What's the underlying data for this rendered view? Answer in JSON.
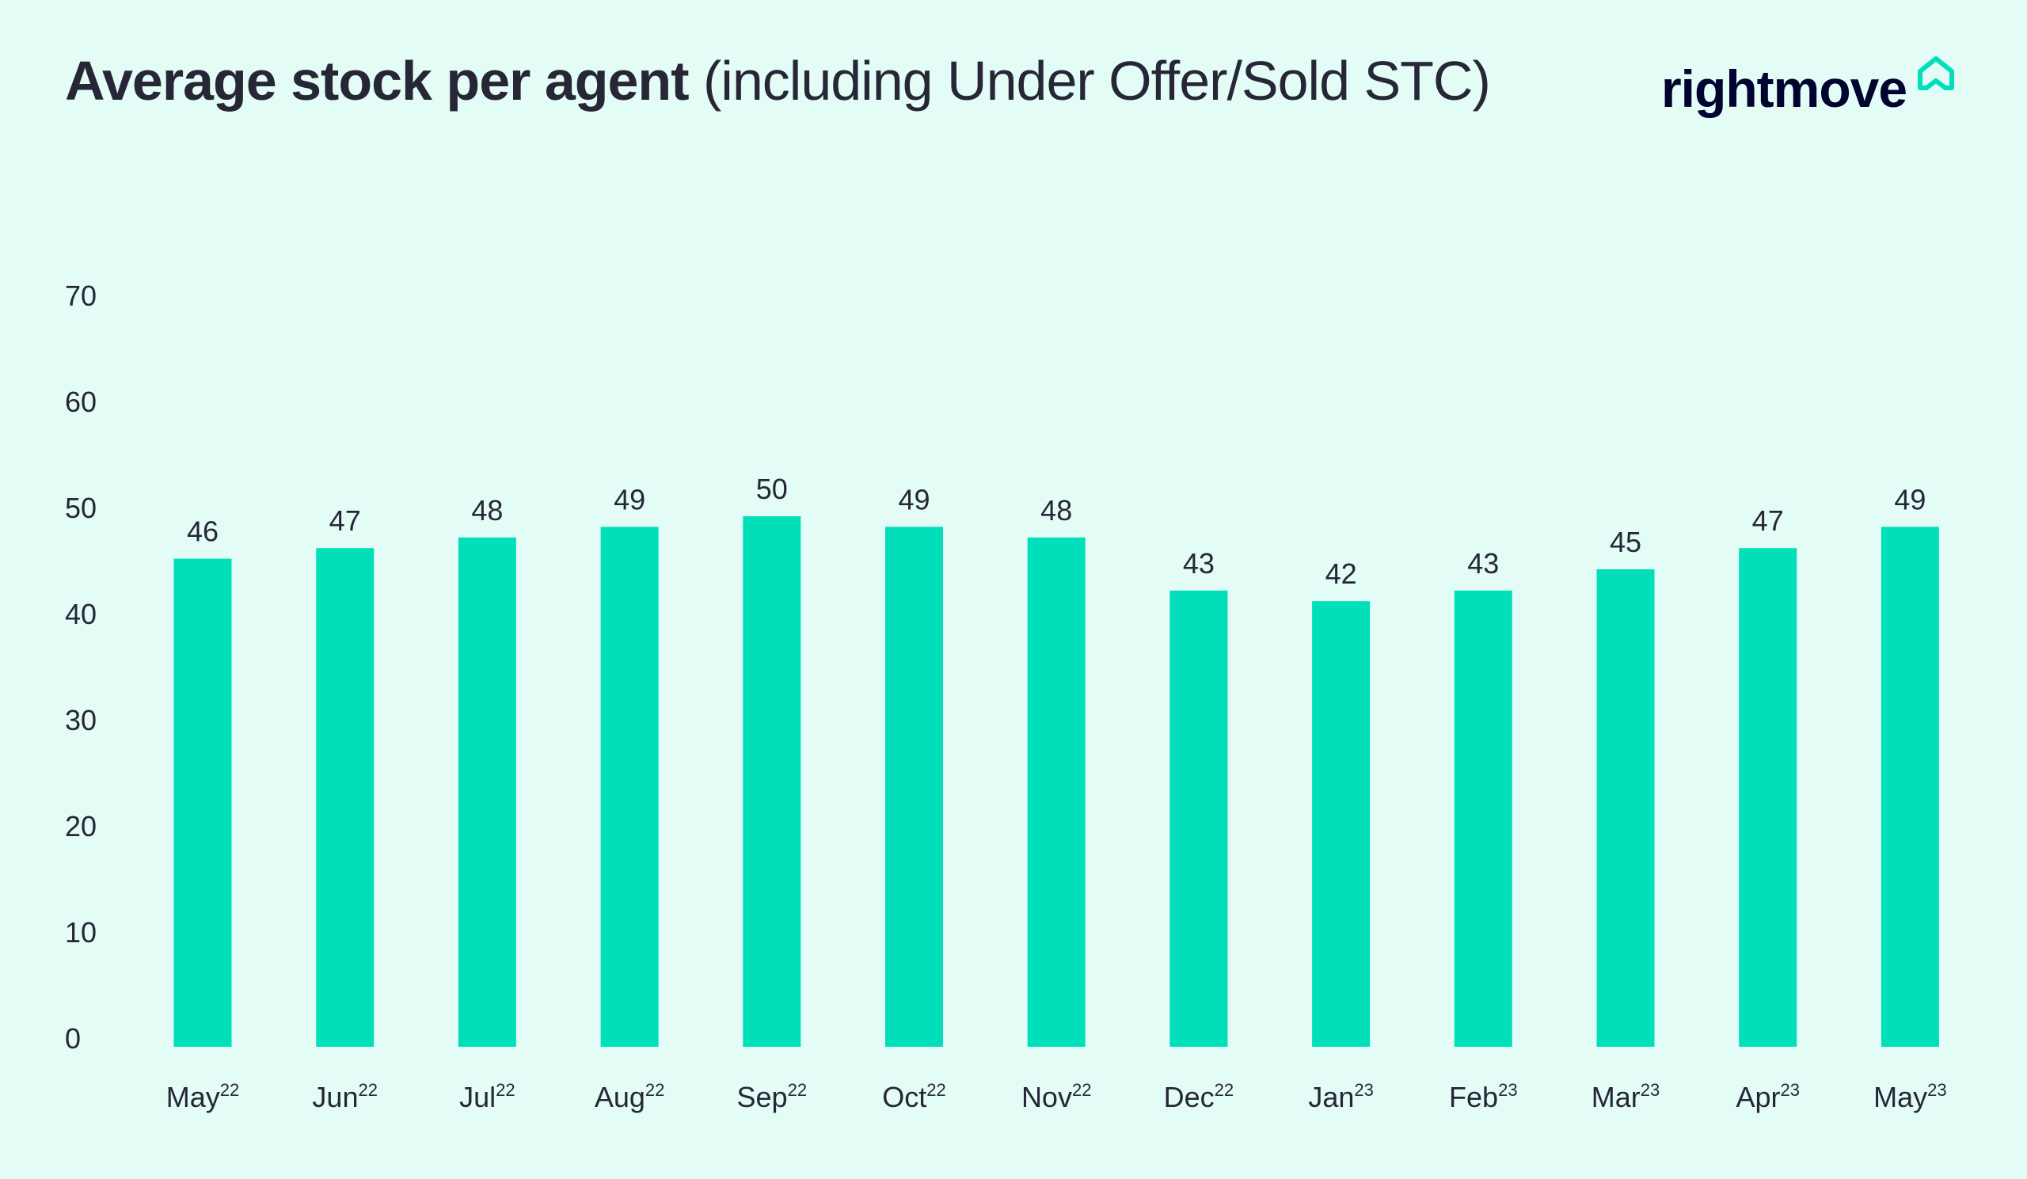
{
  "header": {
    "title_bold": "Average stock per agent",
    "title_light": "(including Under Offer/Sold STC)",
    "logo_text": "rightmove"
  },
  "colors": {
    "bar": "#00dfba",
    "background": "#e3fcf6",
    "text": "#262637",
    "logo": "#00032f"
  },
  "chart_data": {
    "type": "bar",
    "title": "Average stock per agent (including Under Offer/Sold STC)",
    "xlabel": "",
    "ylabel": "",
    "ylim": [
      0,
      70
    ],
    "yticks": [
      "0",
      "10",
      "20",
      "30",
      "40",
      "50",
      "60",
      "70"
    ],
    "grid": false,
    "categories": [
      {
        "month": "May",
        "year": "22"
      },
      {
        "month": "Jun",
        "year": "22"
      },
      {
        "month": "Jul",
        "year": "22"
      },
      {
        "month": "Aug",
        "year": "22"
      },
      {
        "month": "Sep",
        "year": "22"
      },
      {
        "month": "Oct",
        "year": "22"
      },
      {
        "month": "Nov",
        "year": "22"
      },
      {
        "month": "Dec",
        "year": "22"
      },
      {
        "month": "Jan",
        "year": "23"
      },
      {
        "month": "Feb",
        "year": "23"
      },
      {
        "month": "Mar",
        "year": "23"
      },
      {
        "month": "Apr",
        "year": "23"
      },
      {
        "month": "May",
        "year": "23"
      }
    ],
    "values": [
      46,
      47,
      48,
      49,
      50,
      49,
      48,
      43,
      42,
      43,
      45,
      47,
      49
    ]
  }
}
